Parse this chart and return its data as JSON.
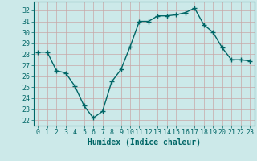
{
  "x": [
    0,
    1,
    2,
    3,
    4,
    5,
    6,
    7,
    8,
    9,
    10,
    11,
    12,
    13,
    14,
    15,
    16,
    17,
    18,
    19,
    20,
    21,
    22,
    23
  ],
  "y": [
    28.2,
    28.2,
    26.5,
    26.3,
    25.1,
    23.3,
    22.2,
    22.8,
    25.5,
    26.6,
    28.7,
    31.0,
    31.0,
    31.5,
    31.5,
    31.6,
    31.8,
    32.2,
    30.7,
    30.0,
    28.6,
    27.5,
    27.5,
    27.4
  ],
  "xlim": [
    -0.5,
    23.5
  ],
  "ylim": [
    21.5,
    32.8
  ],
  "yticks": [
    22,
    23,
    24,
    25,
    26,
    27,
    28,
    29,
    30,
    31,
    32
  ],
  "xticks": [
    0,
    1,
    2,
    3,
    4,
    5,
    6,
    7,
    8,
    9,
    10,
    11,
    12,
    13,
    14,
    15,
    16,
    17,
    18,
    19,
    20,
    21,
    22,
    23
  ],
  "xlabel": "Humidex (Indice chaleur)",
  "line_color": "#006666",
  "marker": "+",
  "bg_color": "#cce9e9",
  "grid_color": "#c0d8d8",
  "tick_label_color": "#006666",
  "axis_color": "#006666",
  "xlabel_color": "#006666",
  "xlabel_fontsize": 7,
  "tick_fontsize": 6,
  "linewidth": 1.0,
  "markersize": 4
}
